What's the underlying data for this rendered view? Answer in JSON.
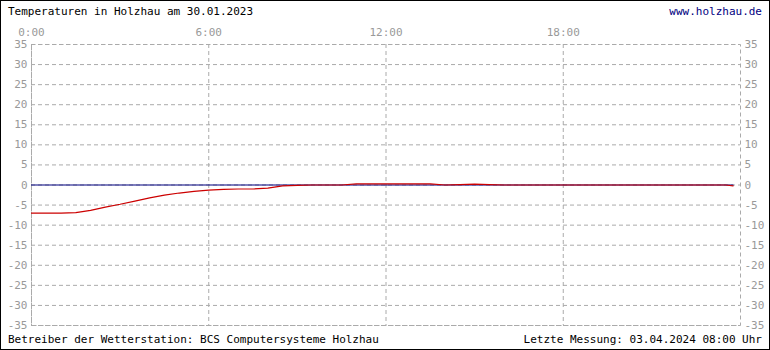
{
  "chart_data": {
    "type": "line",
    "title": "Temperaturen in Holzhau am 30.01.2023",
    "annotations": [
      "www.holzhau.de",
      "Betreiber der Wetterstation: BCS Computersysteme Holzhau",
      "Letzte Messung: 03.04.2024 08:00 Uhr"
    ],
    "x": [
      0,
      0.5,
      1,
      1.5,
      2,
      2.5,
      3,
      3.5,
      4,
      4.5,
      5,
      5.5,
      6,
      6.5,
      7,
      7.5,
      8,
      8.5,
      9,
      9.5,
      10,
      10.5,
      11,
      11.5,
      12,
      12.5,
      13,
      13.5,
      14,
      14.5,
      15,
      15.5,
      16,
      16.5,
      17,
      17.5,
      18,
      18.5,
      19,
      19.5,
      20,
      20.5,
      21,
      21.5,
      22,
      22.5,
      23,
      23.5,
      23.75
    ],
    "series": [
      {
        "color": "#000080",
        "values": [
          0,
          0,
          0,
          0,
          0,
          0,
          0,
          0,
          0,
          0,
          0,
          0,
          0,
          0,
          0,
          0,
          0,
          0,
          0,
          0,
          0,
          0,
          0,
          0,
          0,
          0,
          0,
          0,
          0,
          0,
          0,
          0,
          0,
          0,
          0,
          0,
          0,
          0,
          0,
          0,
          0,
          0,
          0,
          0,
          0,
          0,
          0,
          0,
          0
        ]
      },
      {
        "color": "#cc0000",
        "values": [
          -7,
          -7,
          -7,
          -6.9,
          -6.3,
          -5.5,
          -4.8,
          -4,
          -3.2,
          -2.5,
          -2,
          -1.6,
          -1.3,
          -1.1,
          -1,
          -1,
          -0.8,
          -0.2,
          -0.1,
          0,
          0,
          0,
          0.3,
          0.3,
          0.3,
          0.3,
          0.3,
          0.3,
          0,
          0.1,
          0.2,
          0.1,
          0,
          0,
          0,
          0,
          0,
          0,
          0,
          0,
          0,
          0,
          0,
          0,
          0,
          0,
          0,
          0,
          -0.2
        ]
      }
    ],
    "xlim": [
      0,
      24
    ],
    "xticks": [
      {
        "value": 0,
        "label": "0:00"
      },
      {
        "value": 6,
        "label": "6:00"
      },
      {
        "value": 12,
        "label": "12:00"
      },
      {
        "value": 18,
        "label": "18:00"
      }
    ],
    "ylim": [
      -35,
      35
    ],
    "yticks": [
      35,
      30,
      25,
      20,
      15,
      10,
      5,
      0,
      -5,
      -10,
      -15,
      -20,
      -25,
      -30,
      -35
    ],
    "grid": true
  }
}
